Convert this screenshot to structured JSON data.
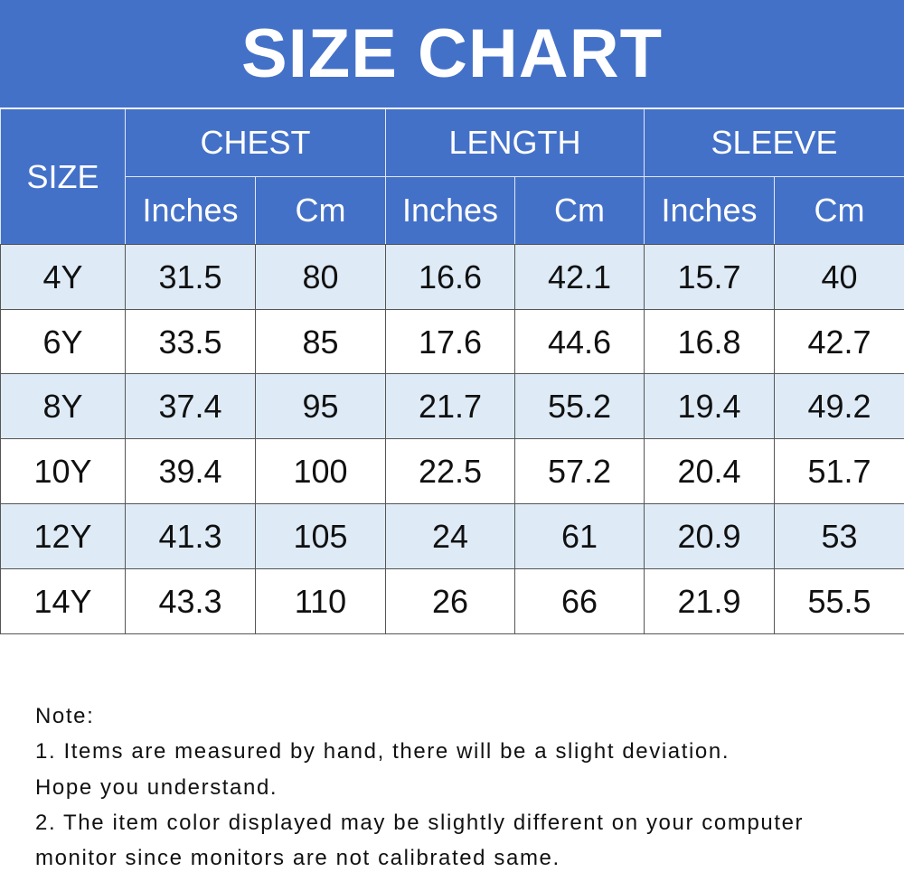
{
  "title": "SIZE CHART",
  "table": {
    "size_header": "SIZE",
    "groups": [
      "CHEST",
      "LENGTH",
      "SLEEVE"
    ],
    "units": [
      "Inches",
      "Cm",
      "Inches",
      "Cm",
      "Inches",
      "Cm"
    ],
    "rows": [
      [
        "4Y",
        31.5,
        80,
        16.6,
        42.1,
        15.7,
        40
      ],
      [
        "6Y",
        33.5,
        85,
        17.6,
        44.6,
        16.8,
        42.7
      ],
      [
        "8Y",
        37.4,
        95,
        21.7,
        55.2,
        19.4,
        49.2
      ],
      [
        "10Y",
        39.4,
        100,
        22.5,
        57.2,
        20.4,
        51.7
      ],
      [
        "12Y",
        41.3,
        105,
        24,
        61,
        20.9,
        53
      ],
      [
        "14Y",
        43.3,
        110,
        26,
        66,
        21.9,
        55.5
      ]
    ]
  },
  "notes": [
    "Note:",
    "1. Items are measured by hand, there will be a slight deviation.",
    "Hope you understand.",
    "2. The item color displayed may be slightly different on your computer",
    "monitor since monitors are not calibrated same."
  ]
}
